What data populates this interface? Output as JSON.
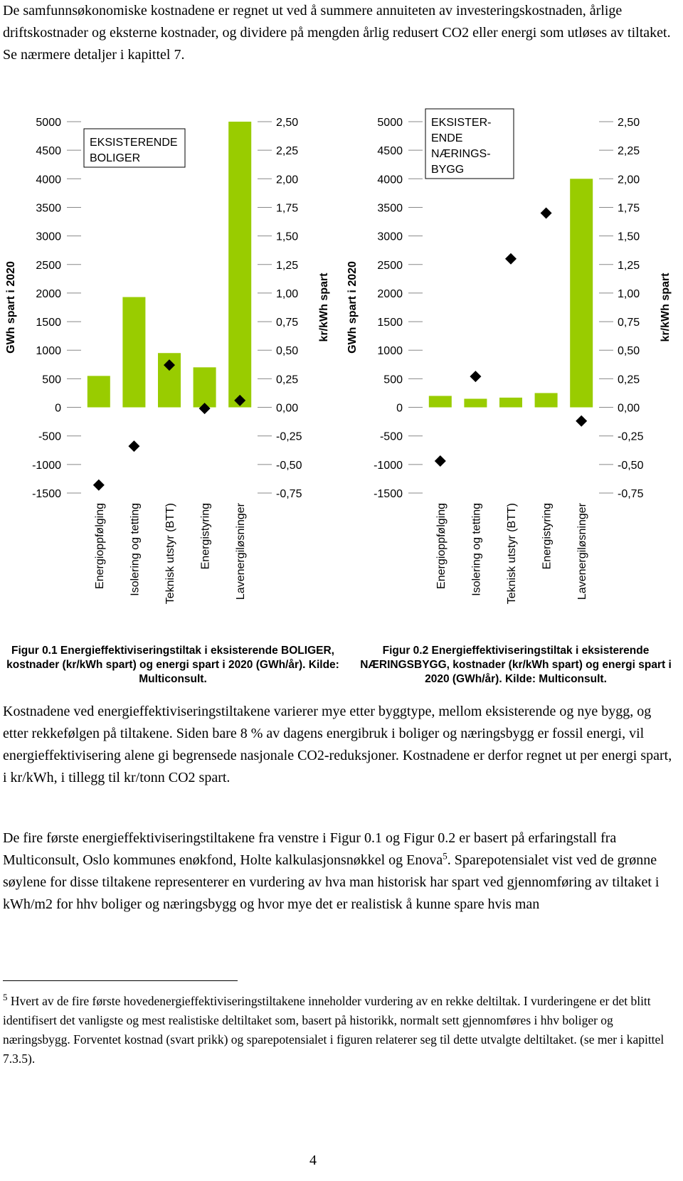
{
  "intro": "De samfunnsøkonomiske kostnadene er regnet ut ved å summere annuiteten av investeringskostnaden, årlige driftskostnader og eksterne kostnader, og dividere på mengden årlig redusert CO2 eller energi som utløses av tiltaket. Se nærmere detaljer i kapittel 7.",
  "chart_data": [
    {
      "type": "bar",
      "annotation": [
        "EKSISTERENDE",
        "BOLIGER"
      ],
      "ylabel": "GWh spart i 2020",
      "y2label": "kr/kWh spart",
      "categories": [
        "Energioppfølging",
        "Isolering og tetting",
        "Teknisk utstyr (BTT)",
        "Energistyring",
        "Lavenergiløsninger"
      ],
      "ylim": [
        -1500,
        5000
      ],
      "yticks": [
        -1500,
        -1000,
        -500,
        0,
        500,
        1000,
        1500,
        2000,
        2500,
        3000,
        3500,
        4000,
        4500,
        5000
      ],
      "y2lim": [
        -0.75,
        2.5
      ],
      "y2ticks": [
        {
          "value": -0.75,
          "label": "-0,75"
        },
        {
          "value": -0.5,
          "label": "-0,50"
        },
        {
          "value": -0.25,
          "label": "-0,25"
        },
        {
          "value": 0,
          "label": "0,00"
        },
        {
          "value": 0.25,
          "label": "0,25"
        },
        {
          "value": 0.5,
          "label": "0,50"
        },
        {
          "value": 0.75,
          "label": "0,75"
        },
        {
          "value": 1,
          "label": "1,00"
        },
        {
          "value": 1.25,
          "label": "1,25"
        },
        {
          "value": 1.5,
          "label": "1,50"
        },
        {
          "value": 1.75,
          "label": "1,75"
        },
        {
          "value": 2,
          "label": "2,00"
        },
        {
          "value": 2.25,
          "label": "2,25"
        },
        {
          "value": 2.5,
          "label": "2,50"
        }
      ],
      "series": [
        {
          "color": "#99cc00",
          "values": [
            550,
            1930,
            950,
            700,
            5000
          ]
        },
        {
          "color": "#000000",
          "axis": "y2",
          "marker": "diamond",
          "values": [
            -0.68,
            -0.34,
            0.37,
            -0.01,
            0.06
          ]
        }
      ],
      "caption": "Figur 0.1 Energieffektiviseringstiltak i eksisterende BOLIGER, kostnader (kr/kWh spart) og energi spart i 2020 (GWh/år). Kilde: Multiconsult."
    },
    {
      "type": "bar",
      "annotation": [
        "EKSISTER-",
        "ENDE",
        "NÆRINGS-",
        "BYGG"
      ],
      "ylabel": "GWh spart i 2020",
      "y2label": "kr/kWh spart",
      "categories": [
        "Energioppfølging",
        "Isolering og tetting",
        "Teknisk utstyr (BTT)",
        "Energistyring",
        "Lavenergiløsninger"
      ],
      "ylim": [
        -1500,
        5000
      ],
      "yticks": [
        -1500,
        -1000,
        -500,
        0,
        500,
        1000,
        1500,
        2000,
        2500,
        3000,
        3500,
        4000,
        4500,
        5000
      ],
      "y2lim": [
        -0.75,
        2.5
      ],
      "y2ticks": [
        {
          "value": -0.75,
          "label": "-0,75"
        },
        {
          "value": -0.5,
          "label": "-0,50"
        },
        {
          "value": -0.25,
          "label": "-0,25"
        },
        {
          "value": 0,
          "label": "0,00"
        },
        {
          "value": 0.25,
          "label": "0,25"
        },
        {
          "value": 0.5,
          "label": "0,50"
        },
        {
          "value": 0.75,
          "label": "0,75"
        },
        {
          "value": 1,
          "label": "1,00"
        },
        {
          "value": 1.25,
          "label": "1,25"
        },
        {
          "value": 1.5,
          "label": "1,50"
        },
        {
          "value": 1.75,
          "label": "1,75"
        },
        {
          "value": 2,
          "label": "2,00"
        },
        {
          "value": 2.25,
          "label": "2,25"
        },
        {
          "value": 2.5,
          "label": "2,50"
        }
      ],
      "series": [
        {
          "color": "#99cc00",
          "values": [
            200,
            150,
            170,
            250,
            4000
          ]
        },
        {
          "color": "#000000",
          "axis": "y2",
          "marker": "diamond",
          "values": [
            -0.47,
            0.27,
            1.3,
            1.7,
            -0.12
          ]
        }
      ],
      "caption": "Figur 0.2 Energieffektiviseringstiltak i eksisterende NÆRINGSBYGG, kostnader (kr/kWh spart) og energi spart i 2020 (GWh/år). Kilde: Multiconsult."
    }
  ],
  "body": {
    "paragraph1": "Kostnadene ved energieffektiviseringstiltakene varierer mye etter byggtype, mellom eksisterende og nye bygg, og etter rekkefølgen på tiltakene. Siden bare 8 % av dagens energibruk i boliger og næringsbygg er fossil energi, vil energieffektivisering alene gi begrensede nasjonale CO2-reduksjoner. Kostnadene er derfor regnet ut per energi spart, i kr/kWh, i tillegg til kr/tonn CO2 spart.",
    "paragraph2_before": "De fire første energieffektiviseringstiltakene fra venstre i Figur 0.1 og Figur 0.2 er basert på erfaringstall fra Multiconsult, Oslo kommunes enøkfond, Holte kalkulasjonsnøkkel og Enova",
    "paragraph2_ref": "5",
    "paragraph2_after": ". Sparepotensialet vist ved de grønne søylene for disse tiltakene representerer en vurdering av hva man historisk har spart ved gjennomføring av tiltaket i kWh/m2 for hhv boliger og næringsbygg og hvor mye det er realistisk å kunne spare hvis man"
  },
  "footnote": {
    "number": "5",
    "text": " Hvert av de fire første hovedenergieffektiviseringstiltakene inneholder vurdering av en rekke deltiltak. I vurderingene er det blitt identifisert det vanligste og mest realistiske deltiltaket som, basert på historikk, normalt sett gjennomføres i hhv boliger og næringsbygg. Forventet kostnad (svart prikk) og sparepotensialet i figuren relaterer seg til dette utvalgte deltiltaket. (se mer i kapittel 7.3.5)."
  },
  "page_number": "4"
}
